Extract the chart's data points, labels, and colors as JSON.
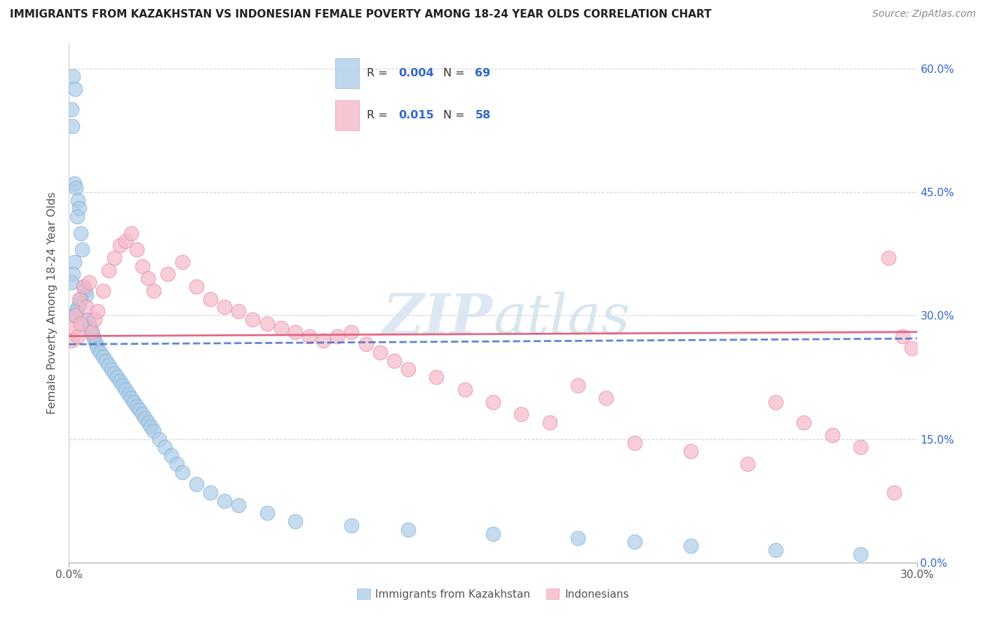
{
  "title": "IMMIGRANTS FROM KAZAKHSTAN VS INDONESIAN FEMALE POVERTY AMONG 18-24 YEAR OLDS CORRELATION CHART",
  "source": "Source: ZipAtlas.com",
  "ylabel": "Female Poverty Among 18-24 Year Olds",
  "ylabel_ticks": [
    "0.0%",
    "15.0%",
    "30.0%",
    "45.0%",
    "60.0%"
  ],
  "ylabel_tick_vals": [
    0,
    15,
    30,
    45,
    60
  ],
  "xtick_vals": [
    0,
    5,
    10,
    15,
    20,
    25,
    30
  ],
  "xtick_labels": [
    "0.0%",
    "",
    "",
    "",
    "",
    "",
    "30.0%"
  ],
  "legend_label1": "Immigrants from Kazakhstan",
  "legend_label2": "Indonesians",
  "R1": "0.004",
  "N1": "69",
  "R2": "0.015",
  "N2": "58",
  "color_blue": "#aecde8",
  "color_pink": "#f4b8c8",
  "color_blue_edge": "#7eb3d8",
  "color_pink_edge": "#e88aa8",
  "color_blue_line": "#4472c4",
  "color_pink_line": "#e05878",
  "color_legend_text": "#3366cc",
  "color_legend_black": "#333333",
  "xmin": 0,
  "xmax": 30,
  "ymin": 0,
  "ymax": 63,
  "background_color": "#ffffff",
  "grid_color": "#d0d0d0",
  "blue_x": [
    0.15,
    0.22,
    0.08,
    0.12,
    0.18,
    0.25,
    0.3,
    0.35,
    0.28,
    0.4,
    0.45,
    0.2,
    0.15,
    0.1,
    0.5,
    0.55,
    0.6,
    0.42,
    0.38,
    0.32,
    0.25,
    0.18,
    0.65,
    0.7,
    0.75,
    0.8,
    0.85,
    0.9,
    0.95,
    1.0,
    1.1,
    1.2,
    1.3,
    1.4,
    1.5,
    1.6,
    1.7,
    1.8,
    1.9,
    2.0,
    2.1,
    2.2,
    2.3,
    2.4,
    2.5,
    2.6,
    2.7,
    2.8,
    2.9,
    3.0,
    3.2,
    3.4,
    3.6,
    3.8,
    4.0,
    4.5,
    5.0,
    5.5,
    6.0,
    7.0,
    8.0,
    10.0,
    12.0,
    15.0,
    18.0,
    20.0,
    22.0,
    25.0,
    28.0
  ],
  "blue_y": [
    59.0,
    57.5,
    55.0,
    53.0,
    46.0,
    45.5,
    44.0,
    43.0,
    42.0,
    40.0,
    38.0,
    36.5,
    35.0,
    34.0,
    33.5,
    33.0,
    32.5,
    32.0,
    31.5,
    31.0,
    30.5,
    30.0,
    29.5,
    29.0,
    28.5,
    28.0,
    27.5,
    27.0,
    26.5,
    26.0,
    25.5,
    25.0,
    24.5,
    24.0,
    23.5,
    23.0,
    22.5,
    22.0,
    21.5,
    21.0,
    20.5,
    20.0,
    19.5,
    19.0,
    18.5,
    18.0,
    17.5,
    17.0,
    16.5,
    16.0,
    15.0,
    14.0,
    13.0,
    12.0,
    11.0,
    9.5,
    8.5,
    7.5,
    7.0,
    6.0,
    5.0,
    4.5,
    4.0,
    3.5,
    3.0,
    2.5,
    2.0,
    1.5,
    1.0
  ],
  "pink_x": [
    0.1,
    0.18,
    0.25,
    0.3,
    0.35,
    0.4,
    0.5,
    0.6,
    0.7,
    0.8,
    0.9,
    1.0,
    1.2,
    1.4,
    1.6,
    1.8,
    2.0,
    2.2,
    2.4,
    2.6,
    2.8,
    3.0,
    3.5,
    4.0,
    4.5,
    5.0,
    5.5,
    6.0,
    6.5,
    7.0,
    7.5,
    8.0,
    8.5,
    9.0,
    9.5,
    10.0,
    10.5,
    11.0,
    11.5,
    12.0,
    13.0,
    14.0,
    15.0,
    16.0,
    17.0,
    18.0,
    19.0,
    20.0,
    22.0,
    24.0,
    25.0,
    26.0,
    27.0,
    28.0,
    29.0,
    29.5,
    29.8,
    29.2
  ],
  "pink_y": [
    27.0,
    28.5,
    30.0,
    27.5,
    32.0,
    29.0,
    33.5,
    31.0,
    34.0,
    28.0,
    29.5,
    30.5,
    33.0,
    35.5,
    37.0,
    38.5,
    39.0,
    40.0,
    38.0,
    36.0,
    34.5,
    33.0,
    35.0,
    36.5,
    33.5,
    32.0,
    31.0,
    30.5,
    29.5,
    29.0,
    28.5,
    28.0,
    27.5,
    27.0,
    27.5,
    28.0,
    26.5,
    25.5,
    24.5,
    23.5,
    22.5,
    21.0,
    19.5,
    18.0,
    17.0,
    21.5,
    20.0,
    14.5,
    13.5,
    12.0,
    19.5,
    17.0,
    15.5,
    14.0,
    37.0,
    27.5,
    26.0,
    8.5
  ]
}
